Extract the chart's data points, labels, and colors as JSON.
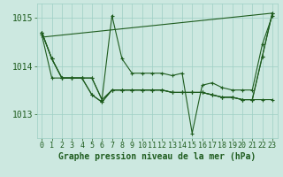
{
  "xlabel": "Graphe pression niveau de la mer (hPa)",
  "background_color": "#cce8e0",
  "plot_bg_color": "#cce8e0",
  "grid_color": "#9ecfc4",
  "line_color": "#1e5c1e",
  "tick_label_color": "#1e5c1e",
  "ylim": [
    1012.5,
    1015.3
  ],
  "xlim": [
    -0.5,
    23.5
  ],
  "yticks": [
    1013,
    1014,
    1015
  ],
  "xticks": [
    0,
    1,
    2,
    3,
    4,
    5,
    6,
    7,
    8,
    9,
    10,
    11,
    12,
    13,
    14,
    15,
    16,
    17,
    18,
    19,
    20,
    21,
    22,
    23
  ],
  "fontsize_xlabel": 7,
  "fontsize_ytick": 7,
  "fontsize_xtick": 6,
  "line1": [
    1014.7,
    1014.15,
    1013.75,
    1013.75,
    1013.75,
    1013.75,
    1013.3,
    1015.05,
    1014.15,
    1013.85,
    1013.85,
    1013.85,
    1013.85,
    1013.8,
    1013.85,
    1012.6,
    1013.6,
    1013.65,
    1013.55,
    1013.5,
    1013.5,
    1013.5,
    1014.45,
    1015.05
  ],
  "line2": [
    1014.7,
    1014.15,
    1013.75,
    1013.75,
    1013.75,
    1013.4,
    1013.25,
    1013.5,
    1013.5,
    1013.5,
    1013.5,
    1013.5,
    1013.5,
    1013.45,
    1013.45,
    1013.45,
    1013.45,
    1013.4,
    1013.35,
    1013.35,
    1013.3,
    1013.3,
    1013.3,
    1013.3
  ],
  "line3": [
    1014.7,
    1014.15,
    1013.75,
    1013.75,
    1013.75,
    1013.4,
    1013.25,
    1013.5,
    1013.5,
    1013.5,
    1013.5,
    1013.5,
    1013.5,
    1013.45,
    1013.45,
    1013.45,
    1013.45,
    1013.4,
    1013.35,
    1013.35,
    1013.3,
    1013.3,
    1014.2,
    1015.1
  ],
  "line4": [
    1014.65,
    1013.75,
    1013.75,
    1013.75,
    1013.75,
    1013.75,
    1013.3,
    1013.5,
    1013.5,
    1013.5,
    1013.5,
    1013.5,
    1013.5,
    1013.45,
    1013.45,
    1013.45,
    1013.45,
    1013.4,
    1013.35,
    1013.35,
    1013.3,
    1013.3,
    1014.2,
    1015.1
  ],
  "trend_x": [
    0,
    23
  ],
  "trend_y": [
    1014.6,
    1015.1
  ]
}
